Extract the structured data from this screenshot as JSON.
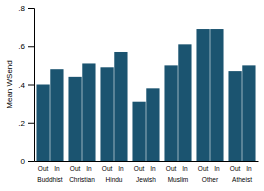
{
  "chart_data": {
    "type": "bar",
    "y_label": "Mean WSend",
    "categories": [
      "Buddhist",
      "Christian",
      "Hindu",
      "Jewish",
      "Muslim",
      "Other",
      "Atheist"
    ],
    "series": [
      {
        "name": "Out",
        "color": "#1b5470",
        "values": [
          0.4,
          0.44,
          0.49,
          0.31,
          0.5,
          0.69,
          0.47
        ]
      },
      {
        "name": "In",
        "color": "#1b5470",
        "values": [
          0.48,
          0.51,
          0.57,
          0.38,
          0.61,
          0.69,
          0.5
        ]
      }
    ],
    "ylim": [
      0,
      0.8
    ],
    "yticks": [
      0,
      {
        "value": 0.2,
        "label": ".2"
      },
      {
        "value": 0.4,
        "label": ".4"
      },
      {
        "value": 0.6,
        "label": ".6"
      },
      {
        "value": 0.8,
        "label": ".8"
      }
    ],
    "grid": false
  }
}
